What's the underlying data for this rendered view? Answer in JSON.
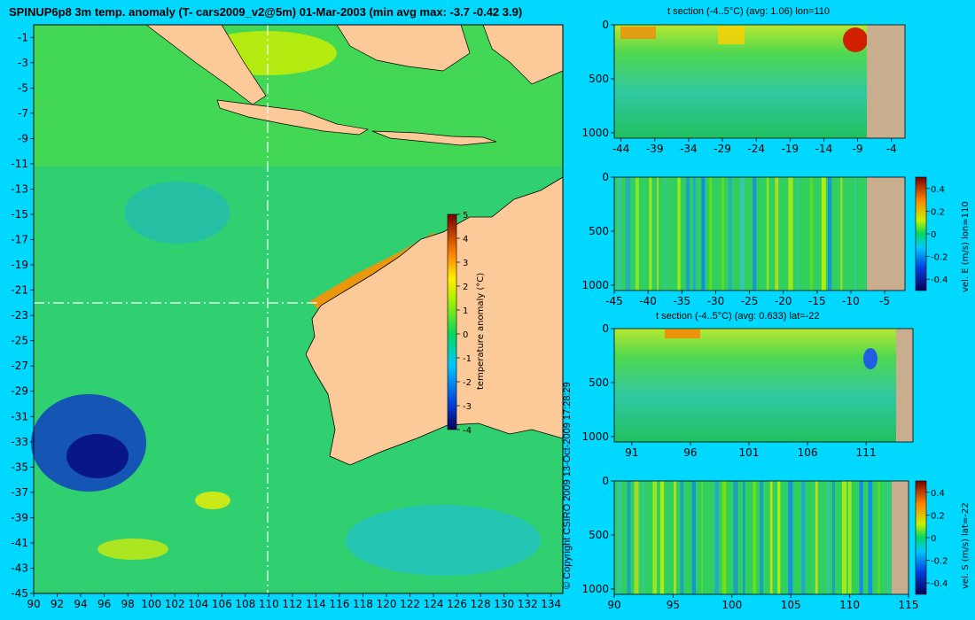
{
  "header": {
    "title": "SPINUP6p8 3m temp. anomaly (T- cars2009_v2@5m) 01-Mar-2003 (min avg max: -3.7 -0.42 3.9)"
  },
  "copyright": "© Copyright CSIRO 2009   13-Oct-2009 17:28:29",
  "colors": {
    "background": "#00d8ff",
    "land": "#fcc998",
    "seafloor": "#c8ad8f"
  },
  "chart_data": [
    {
      "type": "heatmap",
      "title": "SPINUP6p8 3m temp. anomaly (T- cars2009_v2@5m) 01-Mar-2003 (min avg max: -3.7 -0.42 3.9)",
      "x_ticks": [
        90,
        92,
        94,
        96,
        98,
        100,
        102,
        104,
        106,
        108,
        110,
        112,
        114,
        116,
        118,
        120,
        122,
        124,
        126,
        128,
        130,
        132,
        134
      ],
      "y_ticks": [
        -1,
        -3,
        -5,
        -7,
        -9,
        -11,
        -13,
        -15,
        -17,
        -19,
        -21,
        -23,
        -25,
        -27,
        -29,
        -31,
        -33,
        -35,
        -37,
        -39,
        -41,
        -43,
        -45
      ],
      "xlim": [
        90,
        135
      ],
      "ylim": [
        -45,
        0
      ],
      "crosshair": {
        "lon": 110,
        "lat": -22
      },
      "colorbar": {
        "label": "temperature anomaly (°C)",
        "ticks": [
          5,
          4,
          3,
          2,
          1,
          0,
          -1,
          -2,
          -3,
          -4
        ],
        "range": [
          -4,
          5
        ]
      },
      "min": -3.7,
      "avg": -0.42,
      "max": 3.9
    },
    {
      "type": "heatmap",
      "title": "t section (-4..5°C) (avg: 1.06) lon=110",
      "x_ticks": [
        -44,
        -39,
        -34,
        -29,
        -24,
        -19,
        -14,
        -9,
        -4
      ],
      "y_ticks": [
        0,
        500,
        1000
      ],
      "xlim": [
        -45,
        -2
      ],
      "ylim": [
        1050,
        0
      ]
    },
    {
      "type": "heatmap",
      "title": "",
      "x_ticks": [
        -45,
        -40,
        -35,
        -30,
        -25,
        -20,
        -15,
        -10,
        -5
      ],
      "y_ticks": [
        0,
        500,
        1000
      ],
      "xlim": [
        -45,
        -2
      ],
      "ylim": [
        1050,
        0
      ],
      "colorbar": {
        "label": "vel. E (m/s) lon=110",
        "ticks": [
          "0.4",
          "0.2",
          "0",
          "-0.2",
          "-0.4"
        ],
        "range": [
          -0.5,
          0.5
        ]
      }
    },
    {
      "type": "heatmap",
      "title": "t section (-4..5°C) (avg: 0.633) lat=-22",
      "x_ticks": [
        91,
        96,
        101,
        106,
        111
      ],
      "y_ticks": [
        0,
        500,
        1000
      ],
      "xlim": [
        89.5,
        115
      ],
      "ylim": [
        1050,
        0
      ]
    },
    {
      "type": "heatmap",
      "title": "",
      "x_ticks": [
        90,
        95,
        100,
        105,
        110,
        115
      ],
      "y_ticks": [
        0,
        500,
        1000
      ],
      "xlim": [
        90,
        115
      ],
      "ylim": [
        1050,
        0
      ],
      "colorbar": {
        "label": "vel. S (m/s) lat=-22",
        "ticks": [
          "0.4",
          "0.2",
          "0",
          "-0.2",
          "-0.4"
        ],
        "range": [
          -0.5,
          0.5
        ]
      }
    }
  ]
}
